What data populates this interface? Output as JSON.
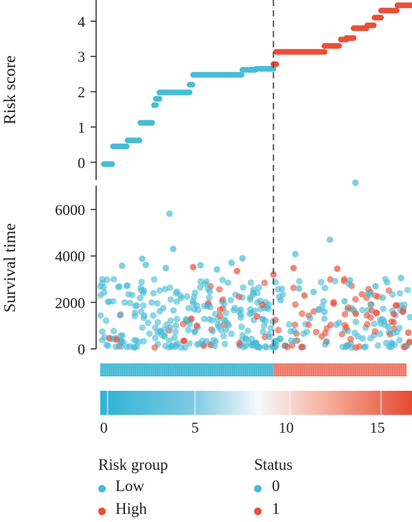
{
  "chart_data": [
    {
      "type": "scatter",
      "panel": "risk-score",
      "ylabel": "Risk score",
      "xlim": [
        -0.2,
        16.9
      ],
      "ylim": [
        -0.5,
        4.6
      ],
      "yticks": [
        0,
        1,
        2,
        3,
        4
      ],
      "cutoff_x": 9.3,
      "groups": [
        {
          "name": "Low",
          "color": "#48bcd6"
        },
        {
          "name": "High",
          "color": "#e8503a"
        }
      ],
      "steps": [
        {
          "group": "Low",
          "x0": 0.0,
          "x1": 0.45,
          "y": -0.05
        },
        {
          "group": "Low",
          "x0": 0.5,
          "x1": 1.25,
          "y": 0.45
        },
        {
          "group": "Low",
          "x0": 1.3,
          "x1": 1.95,
          "y": 0.62
        },
        {
          "group": "Low",
          "x0": 2.0,
          "x1": 2.65,
          "y": 1.12
        },
        {
          "group": "Low",
          "x0": 2.75,
          "x1": 2.85,
          "y": 1.62
        },
        {
          "group": "Low",
          "x0": 2.85,
          "x1": 3.05,
          "y": 1.8
        },
        {
          "group": "Low",
          "x0": 3.05,
          "x1": 4.7,
          "y": 1.98
        },
        {
          "group": "Low",
          "x0": 4.7,
          "x1": 4.85,
          "y": 2.2
        },
        {
          "group": "Low",
          "x0": 4.9,
          "x1": 7.55,
          "y": 2.48
        },
        {
          "group": "Low",
          "x0": 7.6,
          "x1": 8.3,
          "y": 2.62
        },
        {
          "group": "Low",
          "x0": 8.35,
          "x1": 9.3,
          "y": 2.65
        },
        {
          "group": "High",
          "x0": 9.3,
          "x1": 9.45,
          "y": 2.78
        },
        {
          "group": "High",
          "x0": 9.45,
          "x1": 12.1,
          "y": 3.13
        },
        {
          "group": "High",
          "x0": 12.1,
          "x1": 12.9,
          "y": 3.3
        },
        {
          "group": "High",
          "x0": 13.0,
          "x1": 13.3,
          "y": 3.48
        },
        {
          "group": "High",
          "x0": 13.3,
          "x1": 13.7,
          "y": 3.52
        },
        {
          "group": "High",
          "x0": 13.7,
          "x1": 14.4,
          "y": 3.8
        },
        {
          "group": "High",
          "x0": 14.45,
          "x1": 14.8,
          "y": 3.88
        },
        {
          "group": "High",
          "x0": 14.85,
          "x1": 15.2,
          "y": 4.1
        },
        {
          "group": "High",
          "x0": 15.2,
          "x1": 16.05,
          "y": 4.3
        },
        {
          "group": "High",
          "x0": 16.1,
          "x1": 16.9,
          "y": 4.45
        }
      ]
    },
    {
      "type": "scatter",
      "panel": "survival-time",
      "ylabel": "Survival time",
      "xlim": [
        -0.2,
        16.9
      ],
      "ylim": [
        0,
        7200
      ],
      "yticks": [
        0,
        2000,
        4000,
        6000
      ],
      "cutoff_x": 9.3,
      "status_colors": {
        "0": "#48bcd6",
        "1": "#e8503a"
      },
      "points": [
        {
          "x": 3.6,
          "y": 5820,
          "s": 0
        },
        {
          "x": 3.8,
          "y": 4300,
          "s": 0
        },
        {
          "x": 7.0,
          "y": 3700,
          "s": 0
        },
        {
          "x": 7.6,
          "y": 3900,
          "s": 0
        },
        {
          "x": 5.3,
          "y": 3600,
          "s": 0
        },
        {
          "x": 2.1,
          "y": 3880,
          "s": 0
        },
        {
          "x": 2.3,
          "y": 3620,
          "s": 0
        },
        {
          "x": 1.0,
          "y": 3580,
          "s": 0
        },
        {
          "x": 3.4,
          "y": 3480,
          "s": 0
        },
        {
          "x": 6.2,
          "y": 3420,
          "s": 0
        },
        {
          "x": 4.9,
          "y": 3520,
          "s": 1
        },
        {
          "x": 7.3,
          "y": 3350,
          "s": 1
        },
        {
          "x": 9.3,
          "y": 3200,
          "s": 1
        },
        {
          "x": 10.5,
          "y": 4080,
          "s": 0
        },
        {
          "x": 10.4,
          "y": 3480,
          "s": 1
        },
        {
          "x": 12.4,
          "y": 4700,
          "s": 0
        },
        {
          "x": 12.8,
          "y": 3450,
          "s": 1
        },
        {
          "x": 13.8,
          "y": 7150,
          "s": 0
        },
        {
          "x": 13.5,
          "y": 2950,
          "s": 0
        },
        {
          "x": 16.3,
          "y": 3050,
          "s": 0
        },
        {
          "x": 14.5,
          "y": 2400,
          "s": 0
        },
        {
          "x": 11.0,
          "y": 2300,
          "s": 1
        },
        {
          "x": 12.6,
          "y": 1950,
          "s": 1
        },
        {
          "x": 8.7,
          "y": 1900,
          "s": 1
        },
        {
          "x": 8.4,
          "y": 1400,
          "s": 1
        },
        {
          "x": 4.8,
          "y": 1300,
          "s": 1
        },
        {
          "x": 5.1,
          "y": 1000,
          "s": 1
        },
        {
          "x": 0.7,
          "y": 400,
          "s": 1
        },
        {
          "x": 4.4,
          "y": 350,
          "s": 1
        },
        {
          "x": 15.9,
          "y": 1500,
          "s": 1
        },
        {
          "x": 16.4,
          "y": 1600,
          "s": 1
        },
        {
          "x": 16.7,
          "y": 700,
          "s": 1
        },
        {
          "x": 15.6,
          "y": 950,
          "s": 0
        },
        {
          "x": 9.7,
          "y": 2100,
          "s": 0
        },
        {
          "x": 10.7,
          "y": 2600,
          "s": 0
        },
        {
          "x": 11.5,
          "y": 2450,
          "s": 0
        },
        {
          "x": 13.2,
          "y": 2050,
          "s": 0
        },
        {
          "x": 14.9,
          "y": 2700,
          "s": 0
        },
        {
          "x": 15.3,
          "y": 2200,
          "s": 0
        },
        {
          "x": 12.1,
          "y": 1600,
          "s": 0
        }
      ],
      "dense_cloud": {
        "note_points_generated": false,
        "low_range_x": [
          -0.2,
          9.3
        ],
        "high_range_x": [
          9.3,
          16.9
        ],
        "y_typical_max": 3000
      }
    },
    {
      "type": "heatmap",
      "panel": "risk-group-bar",
      "segments": [
        {
          "group": "Low",
          "x0": -0.2,
          "x1": 9.3,
          "color": "#48bcd6"
        },
        {
          "group": "High",
          "x0": 9.3,
          "x1": 16.9,
          "color": "#ee7b6b"
        }
      ]
    },
    {
      "type": "heatmap",
      "panel": "expression-gradient",
      "xlim": [
        -0.2,
        16.9
      ],
      "xticks": [
        0,
        5,
        10,
        15
      ],
      "gradient": [
        {
          "x": -0.2,
          "color": "#2db3d4"
        },
        {
          "x": 4.8,
          "color": "#7cc9e1"
        },
        {
          "x": 8.5,
          "color": "#f5fafc"
        },
        {
          "x": 12.0,
          "color": "#f7b3a3"
        },
        {
          "x": 16.9,
          "color": "#e64a32"
        }
      ]
    }
  ],
  "legend": {
    "risk_group": {
      "title": "Risk group",
      "items": [
        {
          "label": "Low",
          "color": "#48bcd6"
        },
        {
          "label": "High",
          "color": "#e8503a"
        }
      ]
    },
    "status": {
      "title": "Status",
      "items": [
        {
          "label": "0",
          "color": "#48bcd6"
        },
        {
          "label": "1",
          "color": "#e8503a"
        }
      ]
    }
  }
}
